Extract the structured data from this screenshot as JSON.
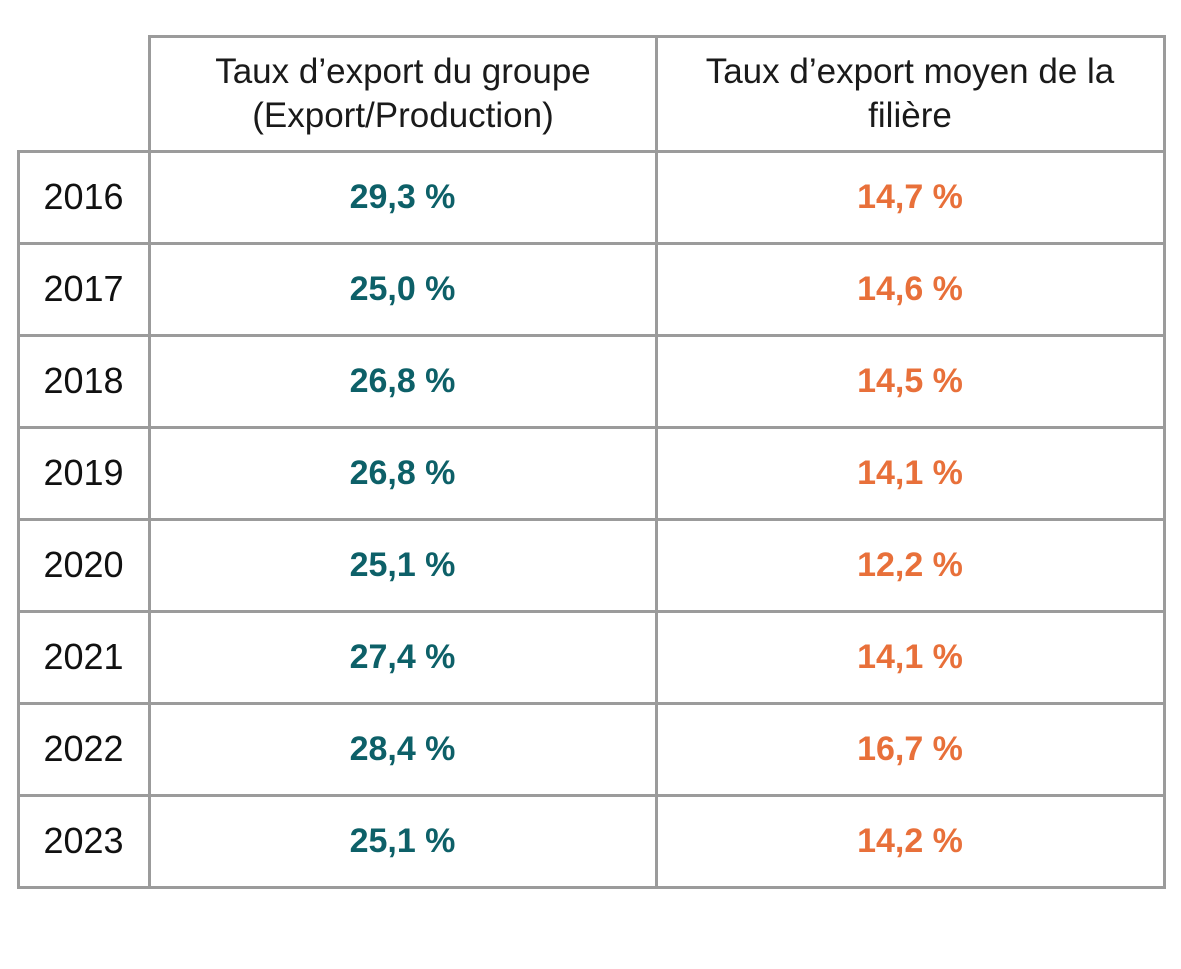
{
  "table": {
    "headers": {
      "group": "Taux d’export du groupe (Export/Production)",
      "sector": "Taux d’export moyen de la filière"
    },
    "colors": {
      "group": "#0d6068",
      "sector": "#e8703a",
      "border": "#9b9b9b"
    },
    "rows": [
      {
        "year": "2016",
        "group": "29,3 %",
        "sector": "14,7 %"
      },
      {
        "year": "2017",
        "group": "25,0 %",
        "sector": "14,6 %"
      },
      {
        "year": "2018",
        "group": "26,8 %",
        "sector": "14,5 %"
      },
      {
        "year": "2019",
        "group": "26,8 %",
        "sector": "14,1 %"
      },
      {
        "year": "2020",
        "group": "25,1 %",
        "sector": "12,2 %"
      },
      {
        "year": "2021",
        "group": "27,4 %",
        "sector": "14,1 %"
      },
      {
        "year": "2022",
        "group": "28,4 %",
        "sector": "16,7 %"
      },
      {
        "year": "2023",
        "group": "25,1 %",
        "sector": "14,2 %"
      }
    ]
  }
}
